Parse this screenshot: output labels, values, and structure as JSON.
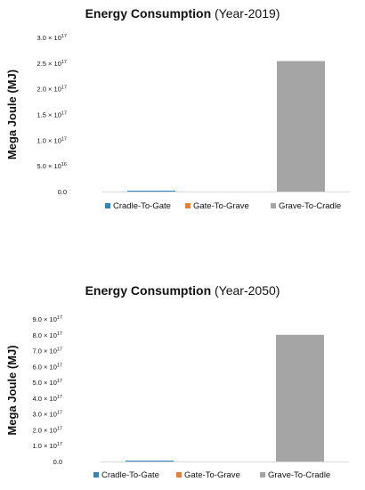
{
  "chart_data": [
    {
      "type": "bar",
      "title": "Energy Consumption",
      "subtitle": "(Year-2019)",
      "ylabel": "Mega Joule (MJ)",
      "xlabel": "",
      "categories": [
        "Cradle-To-Gate",
        "Gate-To-Grave",
        "Grave-To-Cradle"
      ],
      "values": [
        800000000000000.0,
        0.0,
        2.54e+17
      ],
      "colors": [
        "#2e86c1",
        "#ed7d31",
        "#a5a5a5"
      ],
      "ylim": [
        0,
        3e+17
      ],
      "yticks": [
        {
          "value": 0,
          "mantissa": "0.0",
          "exponent": ""
        },
        {
          "value": 5e+16,
          "mantissa": "5.0 × 10",
          "exponent": "16"
        },
        {
          "value": 1e+17,
          "mantissa": "1.0 × 10",
          "exponent": "17"
        },
        {
          "value": 1.5e+17,
          "mantissa": "1.5 × 10",
          "exponent": "17"
        },
        {
          "value": 2e+17,
          "mantissa": "2.0 × 10",
          "exponent": "17"
        },
        {
          "value": 2.5e+17,
          "mantissa": "2.5 × 10",
          "exponent": "17"
        },
        {
          "value": 3e+17,
          "mantissa": "3.0 × 10",
          "exponent": "17"
        }
      ],
      "grid": false,
      "legend_position": "bottom"
    },
    {
      "type": "bar",
      "title": "Energy Consumption",
      "subtitle": "(Year-2050)",
      "ylabel": "Mega Joule (MJ)",
      "xlabel": "",
      "categories": [
        "Cradle-To-Gate",
        "Gate-To-Grave",
        "Grave-To-Cradle"
      ],
      "values": [
        4000000000000000.0,
        0.0,
        8e+17
      ],
      "colors": [
        "#2e86c1",
        "#ed7d31",
        "#a5a5a5"
      ],
      "ylim": [
        0,
        9e+17
      ],
      "yticks": [
        {
          "value": 0,
          "mantissa": "0.0",
          "exponent": ""
        },
        {
          "value": 1e+17,
          "mantissa": "1.0 × 10",
          "exponent": "17"
        },
        {
          "value": 2e+17,
          "mantissa": "2.0 × 10",
          "exponent": "17"
        },
        {
          "value": 3e+17,
          "mantissa": "3.0 × 10",
          "exponent": "17"
        },
        {
          "value": 4e+17,
          "mantissa": "4.0 × 10",
          "exponent": "17"
        },
        {
          "value": 5e+17,
          "mantissa": "5.0 × 10",
          "exponent": "17"
        },
        {
          "value": 6e+17,
          "mantissa": "6.0 × 10",
          "exponent": "17"
        },
        {
          "value": 7e+17,
          "mantissa": "7.0 × 10",
          "exponent": "17"
        },
        {
          "value": 8e+17,
          "mantissa": "8.0 × 10",
          "exponent": "17"
        },
        {
          "value": 9e+17,
          "mantissa": "9.0 × 10",
          "exponent": "17"
        }
      ],
      "grid": false,
      "legend_position": "bottom"
    }
  ]
}
